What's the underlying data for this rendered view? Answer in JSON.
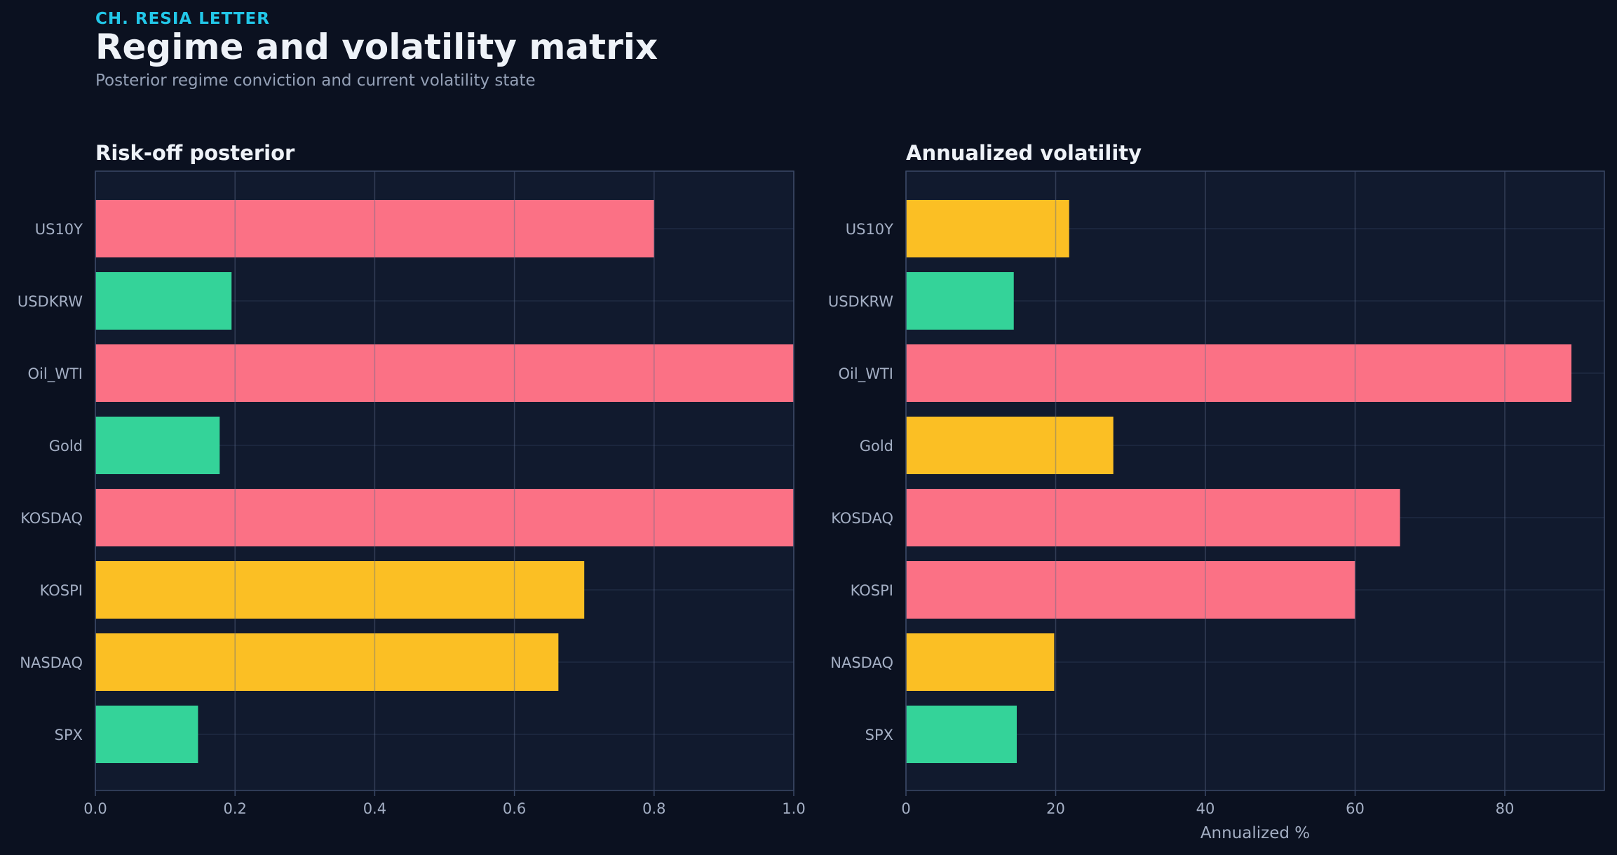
{
  "header": {
    "kicker": "CH. RESIA LETTER",
    "title": "Regime and volatility matrix",
    "subtitle": "Posterior regime conviction and current volatility state"
  },
  "colors": {
    "background": "#0b1120",
    "panel": "#111a2e",
    "high": "#fb7185",
    "mid": "#fbbf24",
    "low": "#34d399"
  },
  "chart_data": [
    {
      "type": "bar",
      "orientation": "horizontal",
      "title": "Risk-off posterior",
      "categories": [
        "US10Y",
        "USDKRW",
        "Oil_WTI",
        "Gold",
        "KOSDAQ",
        "KOSPI",
        "NASDAQ",
        "SPX"
      ],
      "values": [
        0.8,
        0.195,
        1.0,
        0.178,
        1.0,
        0.7,
        0.663,
        0.147
      ],
      "bar_colors": [
        "#fb7185",
        "#34d399",
        "#fb7185",
        "#34d399",
        "#fb7185",
        "#fbbf24",
        "#fbbf24",
        "#34d399"
      ],
      "xlabel": "",
      "xlim": [
        0,
        1.0
      ],
      "xticks": [
        0.0,
        0.2,
        0.4,
        0.6,
        0.8,
        1.0
      ],
      "xtick_labels": [
        "0.0",
        "0.2",
        "0.4",
        "0.6",
        "0.8",
        "1.0"
      ],
      "grid": true
    },
    {
      "type": "bar",
      "orientation": "horizontal",
      "title": "Annualized volatility",
      "categories": [
        "US10Y",
        "USDKRW",
        "Oil_WTI",
        "Gold",
        "KOSDAQ",
        "KOSPI",
        "NASDAQ",
        "SPX"
      ],
      "values": [
        21.8,
        14.4,
        88.9,
        27.7,
        66.0,
        60.0,
        19.8,
        14.8
      ],
      "bar_colors": [
        "#fbbf24",
        "#34d399",
        "#fb7185",
        "#fbbf24",
        "#fb7185",
        "#fb7185",
        "#fbbf24",
        "#34d399"
      ],
      "xlabel": "Annualized %",
      "xlim": [
        0,
        93.3
      ],
      "xticks": [
        0,
        20,
        40,
        60,
        80
      ],
      "xtick_labels": [
        "0",
        "20",
        "40",
        "60",
        "80"
      ],
      "grid": true
    }
  ]
}
